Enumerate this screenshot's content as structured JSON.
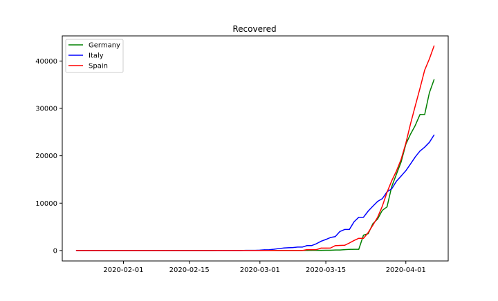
{
  "chart_data": {
    "type": "line",
    "title": "Recovered",
    "xlabel": "",
    "ylabel": "",
    "x_tick_labels": [
      "2020-02-01",
      "2020-02-15",
      "2020-03-01",
      "2020-03-15",
      "2020-04-01"
    ],
    "y_tick_labels": [
      "0",
      "10000",
      "20000",
      "30000",
      "40000"
    ],
    "y_ticks": [
      0,
      10000,
      20000,
      30000,
      40000
    ],
    "x_ticks": [
      "2020-02-01",
      "2020-02-15",
      "2020-03-01",
      "2020-03-15",
      "2020-04-01"
    ],
    "xlim": [
      "2020-01-19",
      "2020-04-10"
    ],
    "ylim": [
      -2200,
      45300
    ],
    "legend_position": "top-left",
    "grid": false,
    "x": [
      "2020-01-22",
      "2020-01-23",
      "2020-01-24",
      "2020-01-25",
      "2020-01-26",
      "2020-01-27",
      "2020-01-28",
      "2020-01-29",
      "2020-01-30",
      "2020-01-31",
      "2020-02-01",
      "2020-02-02",
      "2020-02-03",
      "2020-02-04",
      "2020-02-05",
      "2020-02-06",
      "2020-02-07",
      "2020-02-08",
      "2020-02-09",
      "2020-02-10",
      "2020-02-11",
      "2020-02-12",
      "2020-02-13",
      "2020-02-14",
      "2020-02-15",
      "2020-02-16",
      "2020-02-17",
      "2020-02-18",
      "2020-02-19",
      "2020-02-20",
      "2020-02-21",
      "2020-02-22",
      "2020-02-23",
      "2020-02-24",
      "2020-02-25",
      "2020-02-26",
      "2020-02-27",
      "2020-02-28",
      "2020-02-29",
      "2020-03-01",
      "2020-03-02",
      "2020-03-03",
      "2020-03-04",
      "2020-03-05",
      "2020-03-06",
      "2020-03-07",
      "2020-03-08",
      "2020-03-09",
      "2020-03-10",
      "2020-03-11",
      "2020-03-12",
      "2020-03-13",
      "2020-03-14",
      "2020-03-15",
      "2020-03-16",
      "2020-03-17",
      "2020-03-18",
      "2020-03-19",
      "2020-03-20",
      "2020-03-21",
      "2020-03-22",
      "2020-03-23",
      "2020-03-24",
      "2020-03-25",
      "2020-03-26",
      "2020-03-27",
      "2020-03-28",
      "2020-03-29",
      "2020-03-30",
      "2020-03-31",
      "2020-04-01",
      "2020-04-02",
      "2020-04-03",
      "2020-04-04",
      "2020-04-05",
      "2020-04-06",
      "2020-04-07"
    ],
    "series": [
      {
        "name": "Germany",
        "color": "#008000",
        "values": [
          0,
          0,
          0,
          0,
          0,
          0,
          0,
          0,
          0,
          0,
          0,
          0,
          0,
          0,
          0,
          0,
          0,
          0,
          0,
          0,
          0,
          0,
          0,
          0,
          0,
          0,
          0,
          0,
          0,
          12,
          14,
          14,
          14,
          14,
          14,
          14,
          15,
          15,
          16,
          16,
          16,
          16,
          16,
          16,
          17,
          17,
          18,
          18,
          25,
          25,
          46,
          46,
          46,
          67,
          67,
          105,
          113,
          180,
          233,
          266,
          266,
          3243,
          3547,
          5673,
          6658,
          8481,
          9211,
          13500,
          16100,
          18700,
          22440,
          24575,
          26400,
          28700,
          28700,
          33300,
          36081
        ]
      },
      {
        "name": "Italy",
        "color": "#0000ff",
        "values": [
          0,
          0,
          0,
          0,
          0,
          0,
          0,
          0,
          0,
          0,
          0,
          0,
          0,
          0,
          0,
          0,
          0,
          0,
          0,
          0,
          0,
          0,
          0,
          0,
          0,
          0,
          0,
          0,
          0,
          0,
          0,
          1,
          2,
          1,
          1,
          3,
          45,
          46,
          46,
          83,
          149,
          160,
          276,
          414,
          523,
          589,
          622,
          724,
          724,
          1045,
          1045,
          1439,
          1966,
          2335,
          2749,
          2941,
          4025,
          4440,
          4440,
          6072,
          7024,
          7024,
          8326,
          9362,
          10361,
          10950,
          12384,
          13030,
          14620,
          15729,
          16847,
          18278,
          19758,
          20996,
          21815,
          22837,
          24392
        ]
      },
      {
        "name": "Spain",
        "color": "#ff0000",
        "values": [
          0,
          0,
          0,
          0,
          0,
          0,
          0,
          0,
          0,
          0,
          0,
          0,
          0,
          0,
          0,
          0,
          0,
          0,
          0,
          0,
          0,
          0,
          0,
          0,
          0,
          0,
          0,
          0,
          0,
          0,
          0,
          0,
          0,
          0,
          0,
          0,
          0,
          0,
          0,
          0,
          0,
          0,
          0,
          0,
          0,
          0,
          0,
          0,
          0,
          183,
          183,
          193,
          517,
          517,
          530,
          1028,
          1081,
          1107,
          1588,
          2125,
          2575,
          2575,
          3794,
          5367,
          7015,
          9357,
          12285,
          14709,
          16780,
          19259,
          22647,
          26743,
          30513,
          34219,
          38080,
          40437,
          43208
        ]
      }
    ]
  }
}
